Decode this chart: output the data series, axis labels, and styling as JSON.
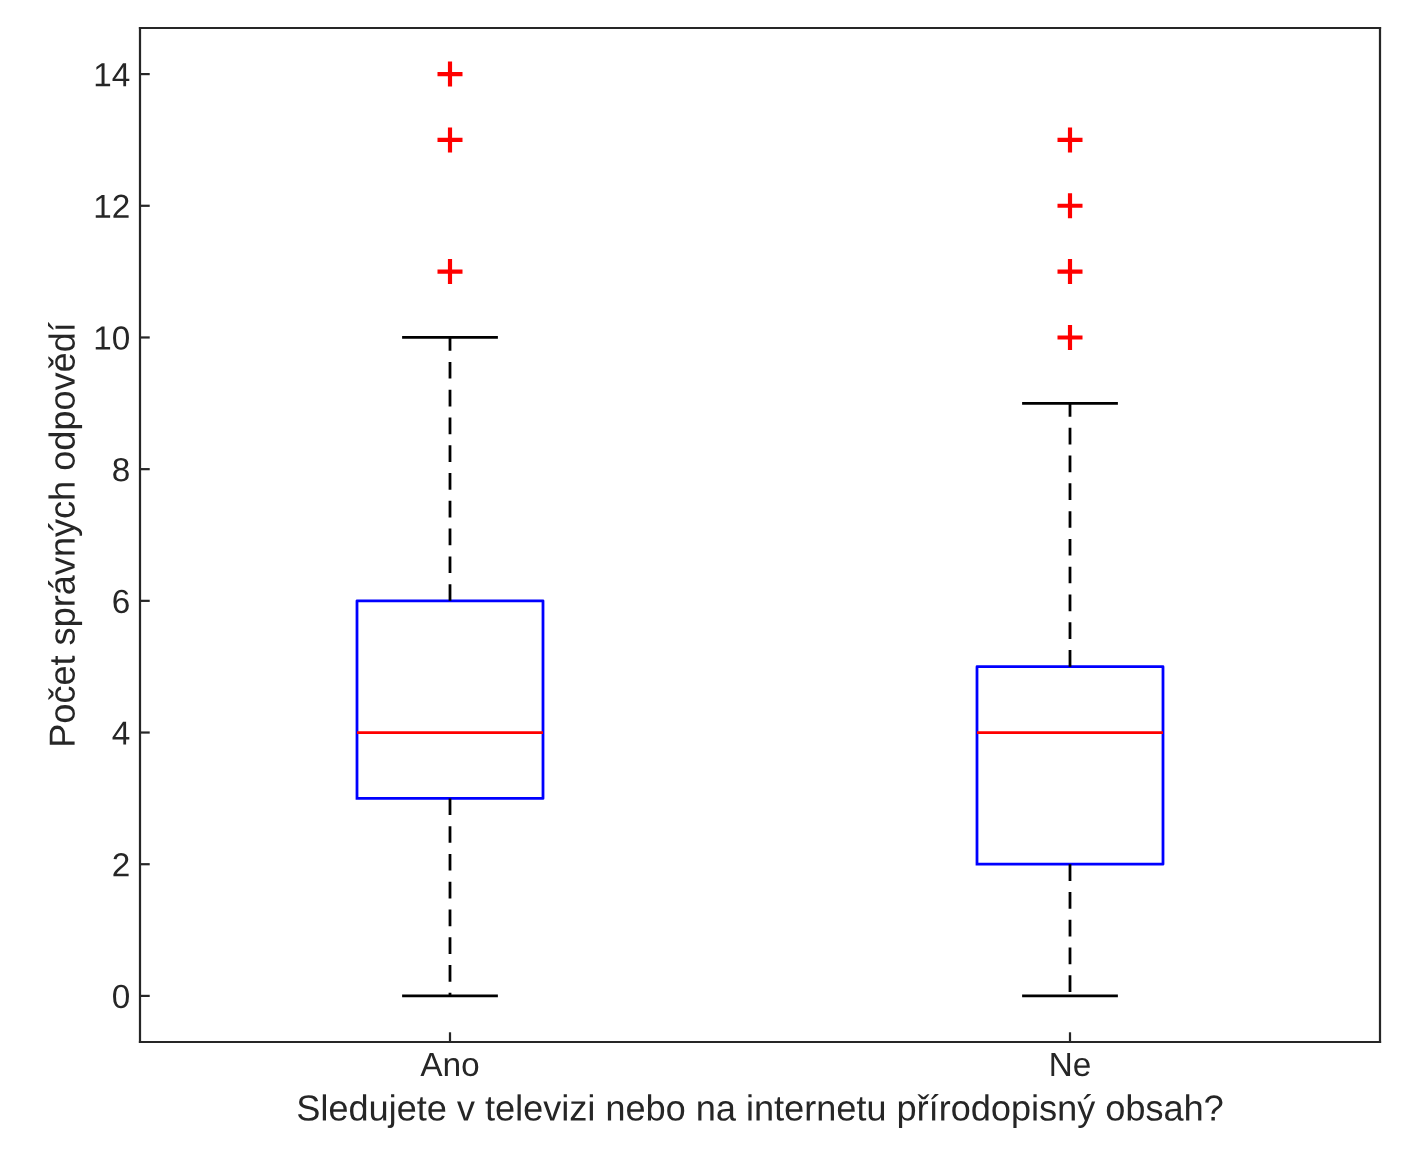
{
  "chart_data": {
    "type": "box",
    "xlabel": "Sledujete v televizi nebo na internetu přírodopisný obsah?",
    "ylabel": "Počet správných odpovědí",
    "categories": [
      "Ano",
      "Ne"
    ],
    "series": [
      {
        "color": "#0000ff",
        "boxes": [
          {
            "low": 0,
            "q1": 3,
            "median": 4,
            "q3": 6,
            "high": 10,
            "outliers": [
              11,
              13,
              14
            ]
          },
          {
            "low": 0,
            "q1": 2,
            "median": 4,
            "q3": 5,
            "high": 9,
            "outliers": [
              10,
              11,
              12,
              13
            ]
          }
        ]
      }
    ],
    "ylim": [
      -0.7,
      14.7
    ],
    "yticks": [
      0,
      2,
      4,
      6,
      8,
      10,
      12,
      14
    ],
    "grid": false,
    "legend": false
  }
}
